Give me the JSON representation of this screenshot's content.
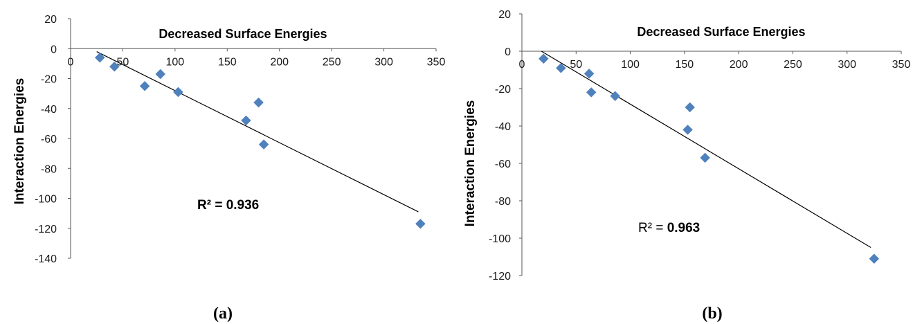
{
  "chart_data": [
    {
      "type": "scatter",
      "title": "Decreased Surface Energies",
      "ylabel": "Interaction Energies",
      "xlabel": "",
      "panel_label": "(a)",
      "r2_prefix": "R² = ",
      "r2_value": "0.936",
      "r2_bold_prefix": true,
      "xlim": [
        0,
        350
      ],
      "ylim": [
        -140,
        20
      ],
      "x_ticks": [
        0,
        50,
        100,
        150,
        200,
        250,
        300,
        350
      ],
      "y_ticks": [
        20,
        0,
        -20,
        -40,
        -60,
        -80,
        -100,
        -120,
        -140
      ],
      "points": [
        {
          "x": 28,
          "y": -6
        },
        {
          "x": 42,
          "y": -12
        },
        {
          "x": 71,
          "y": -25
        },
        {
          "x": 86,
          "y": -17
        },
        {
          "x": 103,
          "y": -29
        },
        {
          "x": 168,
          "y": -48
        },
        {
          "x": 180,
          "y": -36
        },
        {
          "x": 185,
          "y": -64
        },
        {
          "x": 335,
          "y": -117
        }
      ],
      "trendline": {
        "x": [
          25,
          333
        ],
        "y": [
          -2,
          -109
        ]
      },
      "marker_color": "#4f81bd"
    },
    {
      "type": "scatter",
      "title": "Decreased  Surface Energies",
      "ylabel": "Interaction  Energies",
      "xlabel": "",
      "panel_label": "(b)",
      "r2_prefix": "R² = ",
      "r2_value": "0.963",
      "r2_bold_prefix": false,
      "xlim": [
        0,
        350
      ],
      "ylim": [
        -120,
        20
      ],
      "x_ticks": [
        0,
        50,
        100,
        150,
        200,
        250,
        300,
        350
      ],
      "y_ticks": [
        20,
        0,
        -20,
        -40,
        -60,
        -80,
        -100,
        -120
      ],
      "points": [
        {
          "x": 20,
          "y": -4
        },
        {
          "x": 36,
          "y": -9
        },
        {
          "x": 62,
          "y": -12
        },
        {
          "x": 64,
          "y": -22
        },
        {
          "x": 86,
          "y": -24
        },
        {
          "x": 153,
          "y": -42
        },
        {
          "x": 155,
          "y": -30
        },
        {
          "x": 169,
          "y": -57
        },
        {
          "x": 325,
          "y": -111
        }
      ],
      "trendline": {
        "x": [
          18,
          322
        ],
        "y": [
          0,
          -105
        ]
      },
      "marker_color": "#4f81bd"
    }
  ]
}
